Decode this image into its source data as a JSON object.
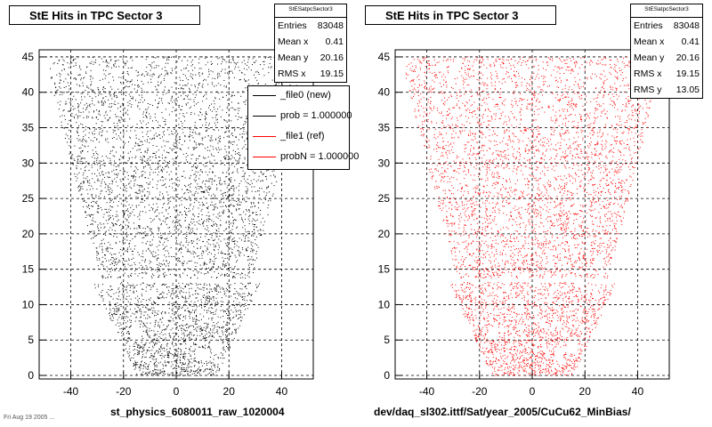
{
  "chart_data": [
    {
      "type": "scatter",
      "title": "StE Hits in TPC Sector 3",
      "xlabel": "st_physics_6080011_raw_1020004",
      "ylabel": "",
      "xlim": [
        -52,
        52
      ],
      "ylim": [
        -0.5,
        46
      ],
      "x_ticks": [
        -40,
        -20,
        0,
        20,
        40
      ],
      "y_ticks": [
        0,
        5,
        10,
        15,
        20,
        25,
        30,
        35,
        40,
        45
      ],
      "grid": true,
      "marker_color": "#000000",
      "stats": {
        "header": "StESatpcSector3",
        "rows": [
          {
            "label": "Entries",
            "value": "83048"
          },
          {
            "label": "Mean x",
            "value": "0.41"
          },
          {
            "label": "Mean y",
            "value": "20.16"
          },
          {
            "label": "RMS x",
            "value": "19.15"
          }
        ]
      },
      "legend": {
        "placement": "top-right",
        "entries": [
          {
            "label": "_file0 (new)",
            "color": "#000000"
          },
          {
            "label": "prob = 1.000000",
            "color": "#000000"
          },
          {
            "label": "_file1 (ref)",
            "color": "#ff0000"
          },
          {
            "label": "probN = 1.000000",
            "color": "#ff0000"
          }
        ]
      },
      "entries": 83048,
      "mean_x": 0.41,
      "mean_y": 20.16,
      "rms_x": 19.15
    },
    {
      "type": "scatter",
      "title": "StE Hits in TPC Sector 3",
      "xlabel": "dev/daq_sl302.ittf/Sat/year_2005/CuCu62_MinBias/",
      "ylabel": "",
      "xlim": [
        -52,
        52
      ],
      "ylim": [
        -0.5,
        46
      ],
      "x_ticks": [
        -40,
        -20,
        0,
        20,
        40
      ],
      "y_ticks": [
        0,
        5,
        10,
        15,
        20,
        25,
        30,
        35,
        40,
        45
      ],
      "grid": true,
      "marker_color": "#ff0000",
      "stats": {
        "header": "StESatpcSector3",
        "rows": [
          {
            "label": "Entries",
            "value": "83048"
          },
          {
            "label": "Mean x",
            "value": "0.41"
          },
          {
            "label": "Mean y",
            "value": "20.16"
          },
          {
            "label": "RMS x",
            "value": "19.15"
          },
          {
            "label": "RMS y",
            "value": "13.05"
          }
        ]
      },
      "entries": 83048,
      "mean_x": 0.41,
      "mean_y": 20.16,
      "rms_x": 19.15,
      "rms_y": 13.05
    }
  ],
  "footnote": "Fri Aug 19 2005 ..."
}
